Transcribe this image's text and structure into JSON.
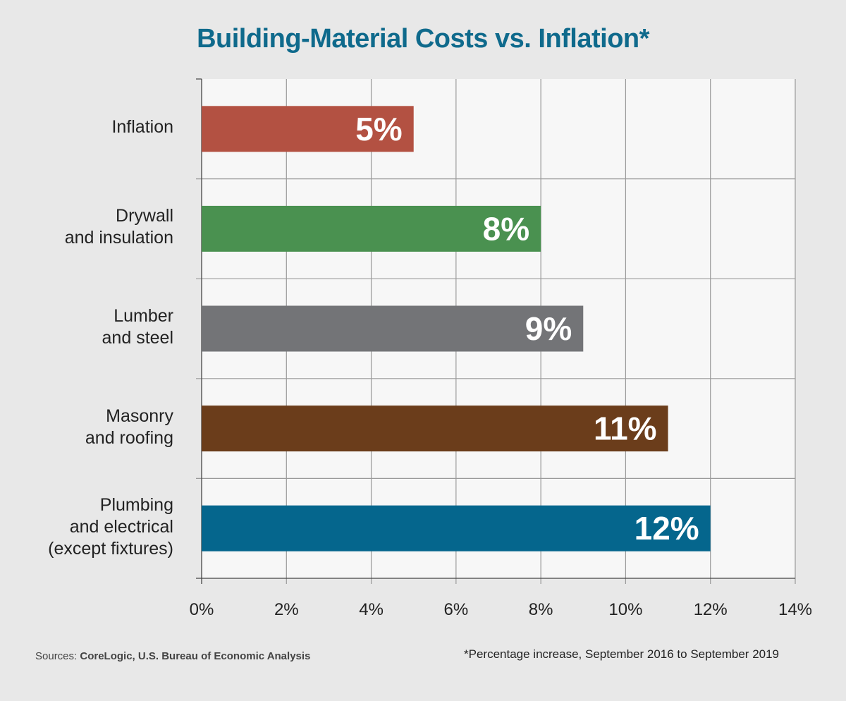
{
  "title": "Building-Material Costs vs. Inflation*",
  "source_prefix": "Sources:",
  "source_names": "CoreLogic, U.S. Bureau of Economic Analysis",
  "footnote": "*Percentage increase, September 2016 to September 2019",
  "colors": {
    "title": "#0f6a8c",
    "plot_background": "#f7f7f7",
    "grid": "#9a9a9a",
    "bar_label": "#ffffff"
  },
  "chart_data": {
    "type": "bar",
    "orientation": "horizontal",
    "title": "Building-Material Costs vs. Inflation*",
    "categories": [
      "Inflation",
      "Drywall and insulation",
      "Lumber and steel",
      "Masonry and roofing",
      "Plumbing and electrical (except fixtures)"
    ],
    "category_lines": [
      [
        "Inflation"
      ],
      [
        "Drywall",
        "and insulation"
      ],
      [
        "Lumber",
        "and steel"
      ],
      [
        "Masonry",
        "and roofing"
      ],
      [
        "Plumbing",
        "and electrical",
        "(except fixtures)"
      ]
    ],
    "values": [
      5,
      8,
      9,
      11,
      12
    ],
    "value_labels": [
      "5%",
      "8%",
      "9%",
      "11%",
      "12%"
    ],
    "bar_colors": [
      "#b35142",
      "#4a9150",
      "#737477",
      "#6b3d1b",
      "#05668d"
    ],
    "xlim": [
      0,
      14
    ],
    "xticks": [
      0,
      2,
      4,
      6,
      8,
      10,
      12,
      14
    ],
    "xtick_labels": [
      "0%",
      "2%",
      "4%",
      "6%",
      "8%",
      "10%",
      "12%",
      "14%"
    ],
    "xlabel": "",
    "ylabel": "",
    "grid": true,
    "legend": "none"
  }
}
